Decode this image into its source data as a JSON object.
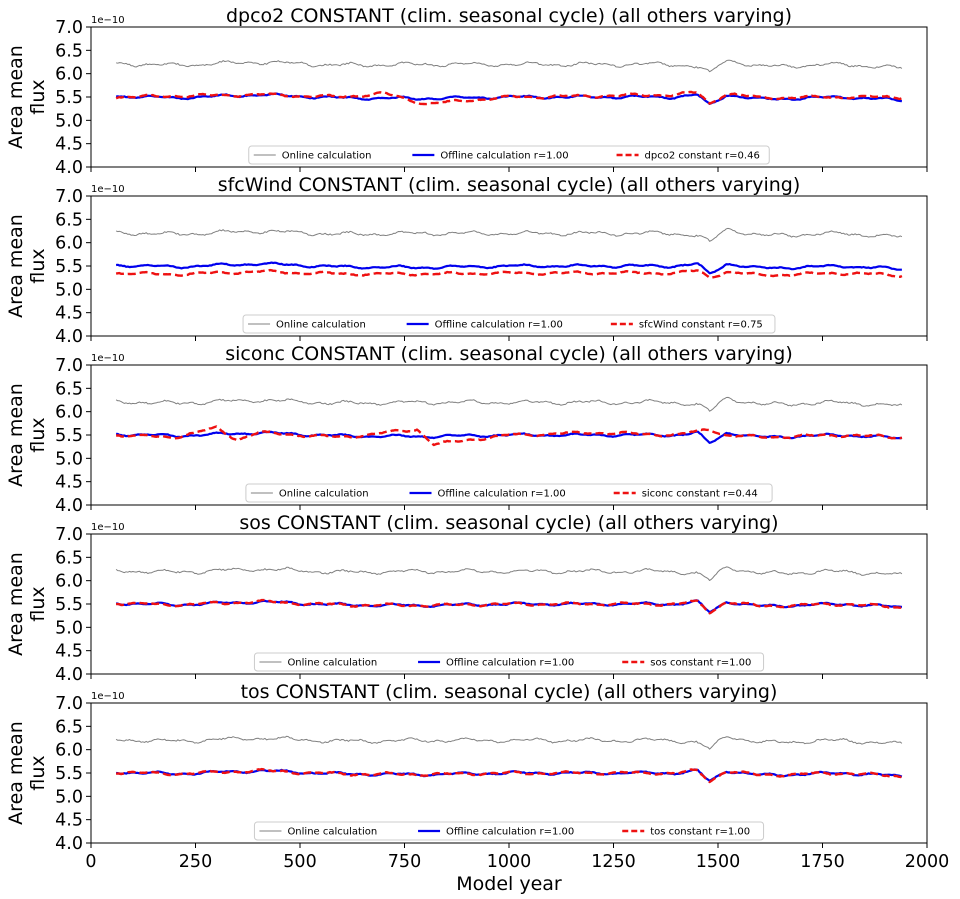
{
  "figure": {
    "xlabel": "Model year",
    "ylabel_line1": "Area mean",
    "ylabel_line2": "flux",
    "offset_text": "1e−10",
    "xticks": [
      0,
      250,
      500,
      750,
      1000,
      1250,
      1500,
      1750,
      2000
    ],
    "yticks": [
      "4.0",
      "4.5",
      "5.0",
      "5.5",
      "6.0",
      "6.5",
      "7.0"
    ],
    "colors": {
      "online": "#808080",
      "offline": "#0000ee",
      "constant": "#ee1111"
    }
  },
  "chart_data": [
    {
      "type": "line",
      "title": "dpco2 CONSTANT (clim. seasonal cycle) (all others varying)",
      "xlim": [
        0,
        2000
      ],
      "ylim": [
        4.0,
        7.0
      ],
      "y_scale_note": "1e-10",
      "grid": false,
      "legend_position": "bottom-center",
      "series": [
        {
          "name": "Online calculation",
          "x": [
            60,
            200,
            400,
            600,
            800,
            1000,
            1200,
            1400,
            1450,
            1480,
            1520,
            1600,
            1800,
            1940
          ],
          "values": [
            6.22,
            6.18,
            6.25,
            6.18,
            6.2,
            6.2,
            6.2,
            6.2,
            6.15,
            6.0,
            6.3,
            6.15,
            6.2,
            6.12
          ]
        },
        {
          "name": "Offline calculation r=1.00",
          "x": [
            60,
            200,
            400,
            600,
            800,
            1000,
            1200,
            1400,
            1450,
            1480,
            1520,
            1600,
            1800,
            1940
          ],
          "values": [
            5.52,
            5.48,
            5.55,
            5.48,
            5.47,
            5.5,
            5.5,
            5.5,
            5.55,
            5.32,
            5.55,
            5.45,
            5.5,
            5.43
          ]
        },
        {
          "name": "dpco2 constant r=0.46",
          "x": [
            60,
            200,
            400,
            600,
            700,
            800,
            1000,
            1200,
            1400,
            1450,
            1480,
            1520,
            1600,
            1800,
            1940
          ],
          "values": [
            5.5,
            5.52,
            5.55,
            5.5,
            5.58,
            5.35,
            5.5,
            5.52,
            5.55,
            5.6,
            5.35,
            5.58,
            5.48,
            5.5,
            5.5
          ]
        }
      ]
    },
    {
      "type": "line",
      "title": "sfcWind CONSTANT (clim. seasonal cycle) (all others varying)",
      "xlim": [
        0,
        2000
      ],
      "ylim": [
        4.0,
        7.0
      ],
      "y_scale_note": "1e-10",
      "grid": false,
      "legend_position": "bottom-center",
      "series": [
        {
          "name": "Online calculation",
          "x": [
            60,
            200,
            400,
            600,
            800,
            1000,
            1200,
            1400,
            1450,
            1480,
            1520,
            1600,
            1800,
            1940
          ],
          "values": [
            6.22,
            6.18,
            6.25,
            6.18,
            6.2,
            6.2,
            6.2,
            6.2,
            6.15,
            6.0,
            6.3,
            6.15,
            6.2,
            6.12
          ]
        },
        {
          "name": "Offline calculation r=1.00",
          "x": [
            60,
            200,
            400,
            600,
            800,
            1000,
            1200,
            1400,
            1450,
            1480,
            1520,
            1600,
            1800,
            1940
          ],
          "values": [
            5.52,
            5.48,
            5.55,
            5.48,
            5.47,
            5.5,
            5.5,
            5.5,
            5.55,
            5.32,
            5.55,
            5.45,
            5.5,
            5.43
          ]
        },
        {
          "name": "sfcWind constant r=0.75",
          "x": [
            60,
            200,
            400,
            600,
            800,
            1000,
            1200,
            1400,
            1450,
            1480,
            1520,
            1600,
            1800,
            1940
          ],
          "values": [
            5.35,
            5.32,
            5.38,
            5.33,
            5.33,
            5.35,
            5.35,
            5.35,
            5.4,
            5.25,
            5.38,
            5.3,
            5.35,
            5.3
          ]
        }
      ]
    },
    {
      "type": "line",
      "title": "siconc CONSTANT (clim. seasonal cycle) (all others varying)",
      "xlim": [
        0,
        2000
      ],
      "ylim": [
        4.0,
        7.0
      ],
      "y_scale_note": "1e-10",
      "grid": false,
      "legend_position": "bottom-center",
      "series": [
        {
          "name": "Online calculation",
          "x": [
            60,
            200,
            400,
            600,
            800,
            1000,
            1200,
            1400,
            1450,
            1480,
            1520,
            1600,
            1800,
            1940
          ],
          "values": [
            6.22,
            6.18,
            6.25,
            6.18,
            6.2,
            6.2,
            6.2,
            6.2,
            6.15,
            6.0,
            6.3,
            6.15,
            6.2,
            6.12
          ]
        },
        {
          "name": "Offline calculation r=1.00",
          "x": [
            60,
            200,
            400,
            600,
            800,
            1000,
            1200,
            1400,
            1450,
            1480,
            1520,
            1600,
            1800,
            1940
          ],
          "values": [
            5.52,
            5.48,
            5.55,
            5.48,
            5.47,
            5.5,
            5.5,
            5.5,
            5.55,
            5.32,
            5.55,
            5.45,
            5.5,
            5.43
          ]
        },
        {
          "name": "siconc constant r=0.44",
          "x": [
            60,
            200,
            300,
            350,
            400,
            600,
            780,
            820,
            1000,
            1200,
            1400,
            1480,
            1520,
            1600,
            1800,
            1940
          ],
          "values": [
            5.5,
            5.45,
            5.65,
            5.4,
            5.55,
            5.45,
            5.62,
            5.3,
            5.5,
            5.55,
            5.5,
            5.62,
            5.5,
            5.45,
            5.5,
            5.45
          ]
        }
      ]
    },
    {
      "type": "line",
      "title": "sos CONSTANT (clim. seasonal cycle) (all others varying)",
      "xlim": [
        0,
        2000
      ],
      "ylim": [
        4.0,
        7.0
      ],
      "y_scale_note": "1e-10",
      "grid": false,
      "legend_position": "bottom-center",
      "series": [
        {
          "name": "Online calculation",
          "x": [
            60,
            200,
            400,
            600,
            800,
            1000,
            1200,
            1400,
            1450,
            1480,
            1520,
            1600,
            1800,
            1940
          ],
          "values": [
            6.22,
            6.18,
            6.25,
            6.18,
            6.2,
            6.2,
            6.2,
            6.2,
            6.15,
            6.0,
            6.3,
            6.15,
            6.2,
            6.12
          ]
        },
        {
          "name": "Offline calculation r=1.00",
          "x": [
            60,
            200,
            400,
            600,
            800,
            1000,
            1200,
            1400,
            1450,
            1480,
            1520,
            1600,
            1800,
            1940
          ],
          "values": [
            5.52,
            5.48,
            5.55,
            5.48,
            5.47,
            5.5,
            5.5,
            5.5,
            5.55,
            5.32,
            5.55,
            5.45,
            5.5,
            5.43
          ]
        },
        {
          "name": "sos constant r=1.00",
          "x": [
            60,
            200,
            400,
            600,
            800,
            1000,
            1200,
            1400,
            1450,
            1480,
            1520,
            1600,
            1800,
            1940
          ],
          "values": [
            5.52,
            5.48,
            5.55,
            5.48,
            5.47,
            5.5,
            5.5,
            5.5,
            5.55,
            5.32,
            5.55,
            5.45,
            5.5,
            5.43
          ]
        }
      ]
    },
    {
      "type": "line",
      "title": "tos CONSTANT (clim. seasonal cycle) (all others varying)",
      "xlim": [
        0,
        2000
      ],
      "ylim": [
        4.0,
        7.0
      ],
      "y_scale_note": "1e-10",
      "grid": false,
      "legend_position": "bottom-center",
      "series": [
        {
          "name": "Online calculation",
          "x": [
            60,
            200,
            400,
            600,
            800,
            1000,
            1200,
            1400,
            1450,
            1480,
            1520,
            1600,
            1800,
            1940
          ],
          "values": [
            6.22,
            6.18,
            6.25,
            6.18,
            6.2,
            6.2,
            6.2,
            6.2,
            6.15,
            6.0,
            6.3,
            6.15,
            6.2,
            6.12
          ]
        },
        {
          "name": "Offline calculation r=1.00",
          "x": [
            60,
            200,
            400,
            600,
            800,
            1000,
            1200,
            1400,
            1450,
            1480,
            1520,
            1600,
            1800,
            1940
          ],
          "values": [
            5.52,
            5.48,
            5.55,
            5.48,
            5.47,
            5.5,
            5.5,
            5.5,
            5.55,
            5.32,
            5.55,
            5.45,
            5.5,
            5.43
          ]
        },
        {
          "name": "tos constant r=1.00",
          "x": [
            60,
            200,
            400,
            600,
            800,
            1000,
            1200,
            1400,
            1450,
            1480,
            1520,
            1600,
            1800,
            1940
          ],
          "values": [
            5.52,
            5.48,
            5.55,
            5.48,
            5.47,
            5.5,
            5.5,
            5.5,
            5.55,
            5.32,
            5.55,
            5.45,
            5.5,
            5.43
          ]
        }
      ]
    }
  ]
}
